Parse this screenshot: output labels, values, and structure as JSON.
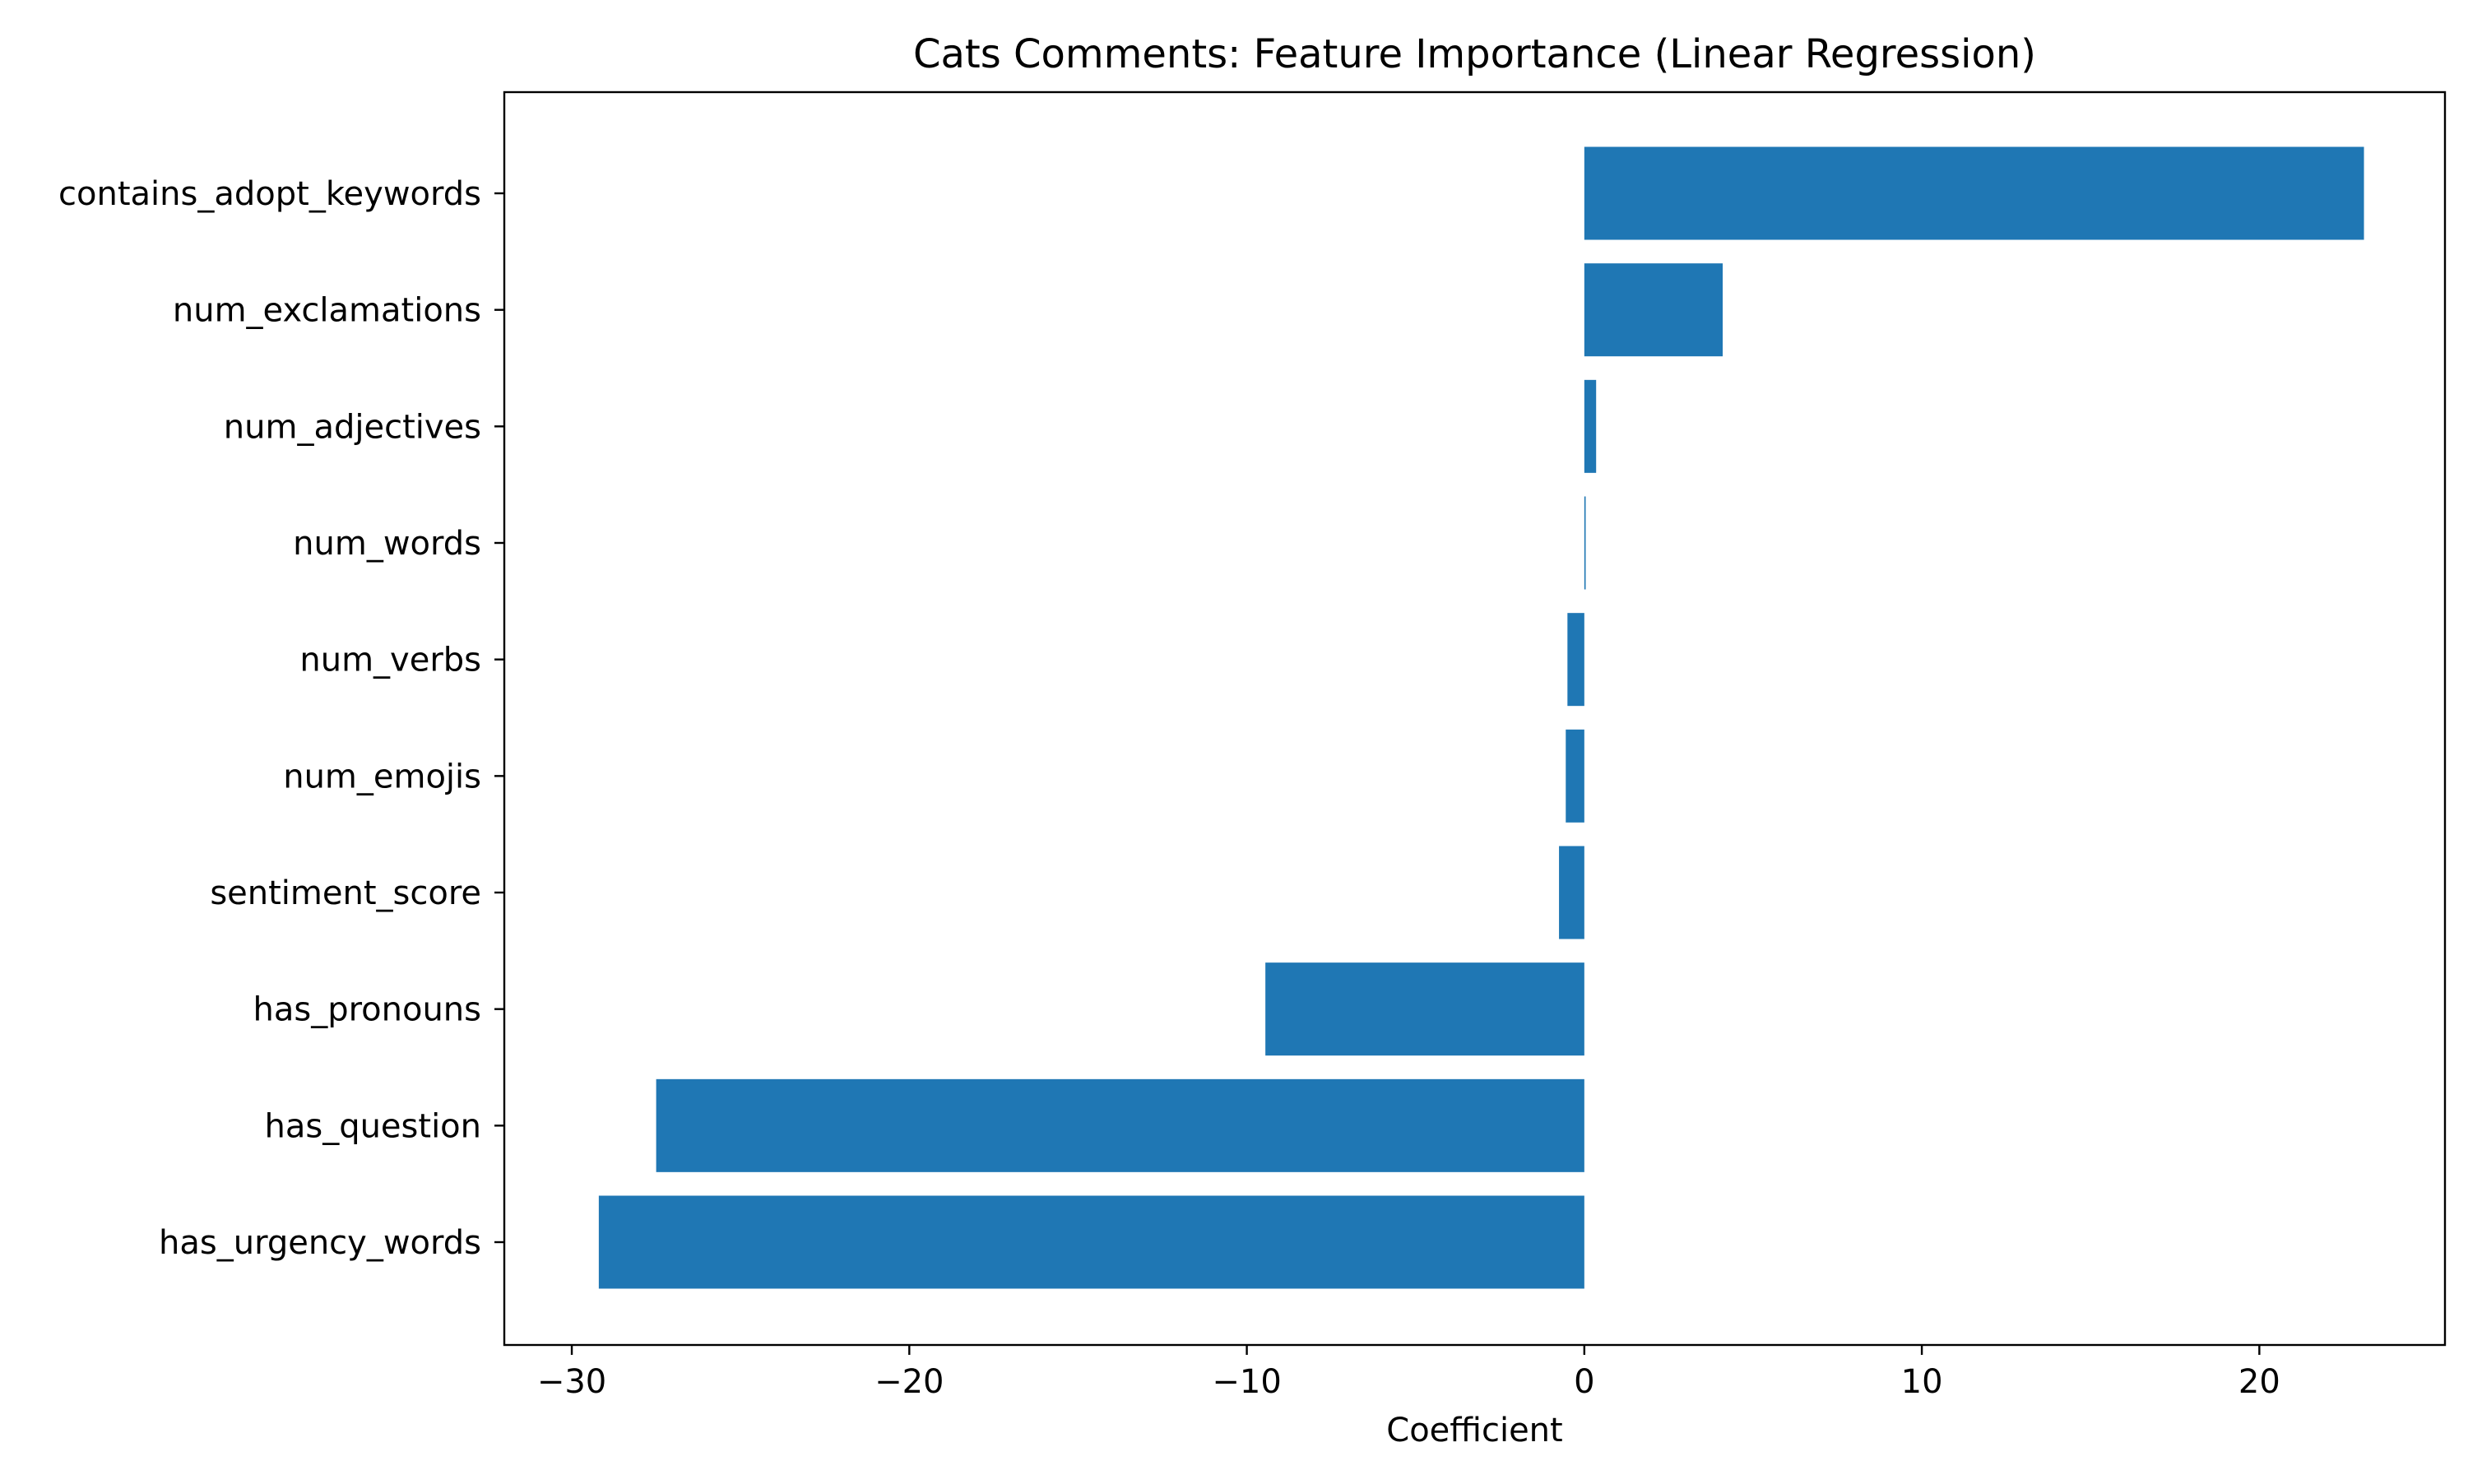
{
  "chart_data": {
    "type": "bar",
    "orientation": "horizontal",
    "title": "Cats Comments: Feature Importance (Linear Regression)",
    "xlabel": "Coefficient",
    "ylabel": "",
    "xlim": [
      -32,
      25.5
    ],
    "x_ticks": [
      -30,
      -20,
      -10,
      0,
      10,
      20
    ],
    "x_tick_labels": [
      "−30",
      "−20",
      "−10",
      "0",
      "10",
      "20"
    ],
    "categories": [
      "contains_adopt_keywords",
      "num_exclamations",
      "num_adjectives",
      "num_words",
      "num_verbs",
      "num_emojis",
      "sentiment_score",
      "has_pronouns",
      "has_question",
      "has_urgency_words"
    ],
    "values": [
      23.1,
      4.1,
      0.35,
      0.04,
      -0.5,
      -0.55,
      -0.75,
      -9.45,
      -27.5,
      -29.2
    ],
    "color": "#1f77b4",
    "grid": false,
    "legend": "none"
  }
}
